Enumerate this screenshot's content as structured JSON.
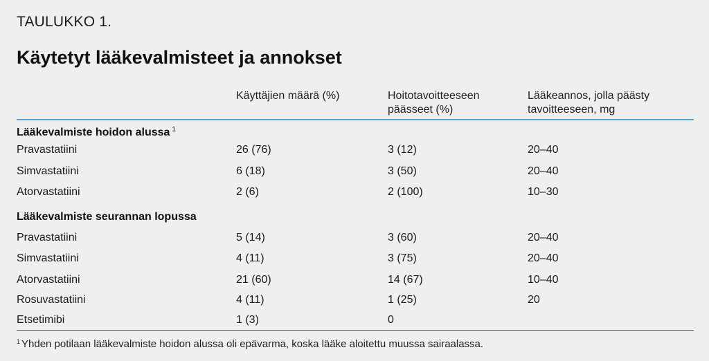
{
  "table_label": "TAULUKKO 1.",
  "title": "Käytetyt lääkevalmisteet ja annokset",
  "columns": {
    "c1": "Käyttäjien määrä (%)",
    "c2": "Hoitotavoitteeseen\npäässeet (%)",
    "c3": "Lääkeannos, jolla päästy\ntavoitteeseen, mg"
  },
  "sections": [
    {
      "heading": "Lääkevalmiste hoidon alussa",
      "marker": "1",
      "rows": [
        [
          "Pravastatiini",
          "26 (76)",
          "3 (12)",
          "20–40"
        ],
        [
          "Simvastatiini",
          "6 (18)",
          "3 (50)",
          "20–40"
        ],
        [
          "Atorvastatiini",
          "2 (6)",
          "2 (100)",
          "10–30"
        ]
      ]
    },
    {
      "heading": "Lääkevalmiste seurannan lopussa",
      "marker": "",
      "rows": [
        [
          "Pravastatiini",
          "5 (14)",
          "3 (60)",
          "20–40"
        ],
        [
          "Simvastatiini",
          "4 (11)",
          "3 (75)",
          "20–40"
        ],
        [
          "Atorvastatiini",
          "21 (60)",
          "14 (67)",
          "10–40"
        ],
        [
          "Rosuvastatiini",
          "4 (11)",
          "1 (25)",
          "20"
        ],
        [
          "Etsetimibi",
          "1 (3)",
          "0",
          ""
        ]
      ]
    }
  ],
  "footnote": {
    "marker": "1",
    "text": "Yhden potilaan lääkevalmiste hoidon alussa oli epävarma, koska lääke aloitettu muussa sairaalassa."
  },
  "colors": {
    "background": "#efefed",
    "rule_accent": "#4a9fd4"
  }
}
